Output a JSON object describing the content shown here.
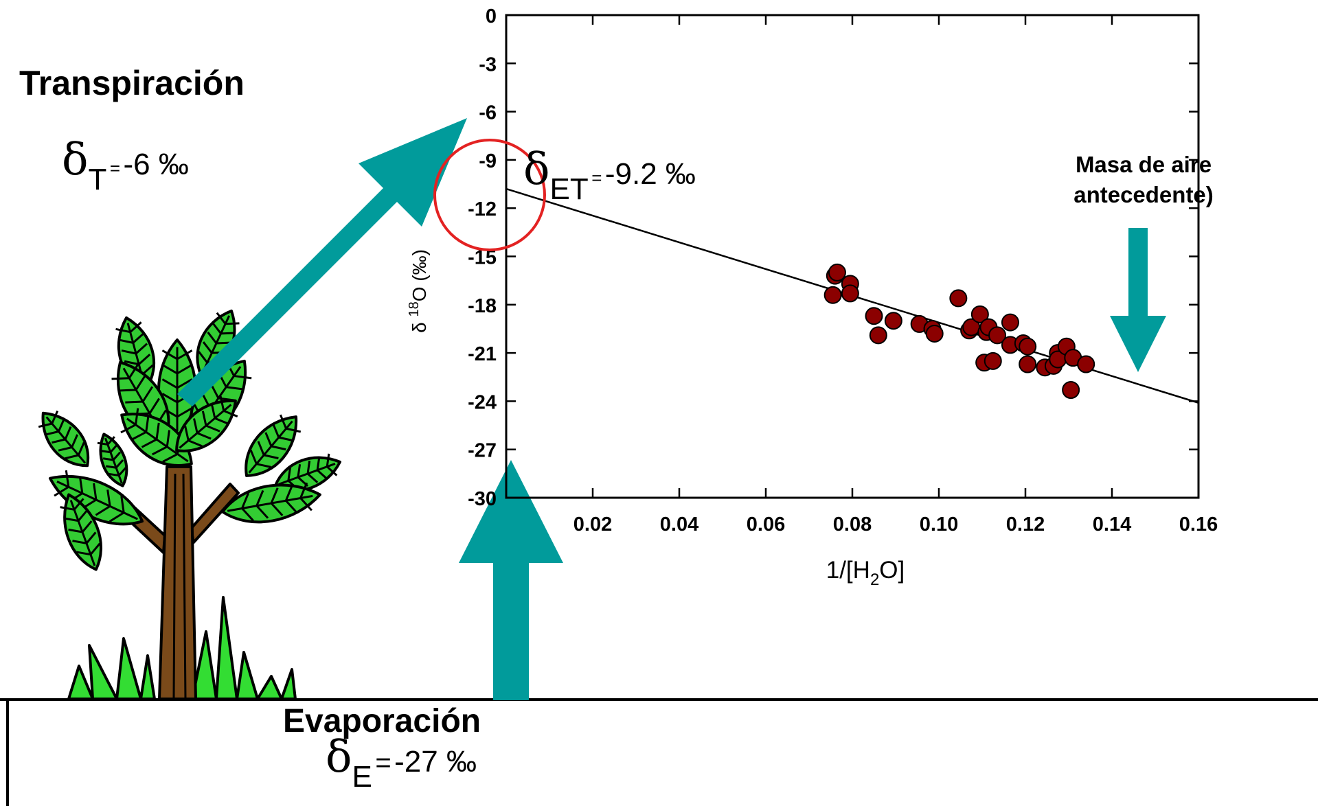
{
  "transpiration": {
    "title": "Transpiración",
    "delta_symbol": "δ",
    "subscript": "T",
    "equals": "=",
    "value": "-6 ‰"
  },
  "evaporation": {
    "title": "Evaporación",
    "delta_symbol": "δ",
    "subscript": "E",
    "equals": "=",
    "value": "-27 ‰"
  },
  "evapotranspiration": {
    "delta_symbol": "δ",
    "subscript": "ET",
    "equals": "=",
    "value": "-9.2 ‰"
  },
  "air_mass": {
    "line1": "Masa de aire",
    "line2": "antecedente)"
  },
  "colors": {
    "arrow": "#019b9b",
    "points": "#8b0000",
    "circle": "#e32222",
    "leaf": "#33cc33",
    "trunk": "#7a4a1a"
  },
  "chart_data": {
    "type": "scatter",
    "xlabel_parts": [
      "1/[H",
      "2",
      "O]"
    ],
    "ylabel_parts": [
      "δ ",
      "18",
      "O (‰)"
    ],
    "xlim": [
      0,
      0.16
    ],
    "ylim": [
      -30,
      0
    ],
    "x_ticks": [
      0.02,
      0.04,
      0.06,
      0.08,
      0.1,
      0.12,
      0.14,
      0.16
    ],
    "x_tick_labels": [
      "0.02",
      "0.04",
      "0.06",
      "0.08",
      "0.10",
      "0.12",
      "0.14",
      "0.16"
    ],
    "y_ticks": [
      0,
      -3,
      -6,
      -9,
      -12,
      -15,
      -18,
      -21,
      -24,
      -27,
      -30
    ],
    "y_tick_labels": [
      "0",
      "-3",
      "-6",
      "-9",
      "-12",
      "-15",
      "-18",
      "-21",
      "-24",
      "-27",
      "-30"
    ],
    "points": [
      [
        0.076,
        -16.2
      ],
      [
        0.0765,
        -16.0
      ],
      [
        0.0795,
        -16.7
      ],
      [
        0.0755,
        -17.4
      ],
      [
        0.0795,
        -17.3
      ],
      [
        0.085,
        -18.7
      ],
      [
        0.0895,
        -19.0
      ],
      [
        0.086,
        -19.9
      ],
      [
        0.0955,
        -19.2
      ],
      [
        0.0985,
        -19.5
      ],
      [
        0.099,
        -19.8
      ],
      [
        0.1045,
        -17.6
      ],
      [
        0.107,
        -19.6
      ],
      [
        0.1075,
        -19.4
      ],
      [
        0.1095,
        -18.6
      ],
      [
        0.111,
        -19.7
      ],
      [
        0.1115,
        -19.4
      ],
      [
        0.1135,
        -19.9
      ],
      [
        0.1165,
        -19.1
      ],
      [
        0.1165,
        -20.5
      ],
      [
        0.1195,
        -20.4
      ],
      [
        0.1205,
        -20.6
      ],
      [
        0.1105,
        -21.6
      ],
      [
        0.1125,
        -21.5
      ],
      [
        0.1205,
        -21.7
      ],
      [
        0.1245,
        -21.9
      ],
      [
        0.1265,
        -21.8
      ],
      [
        0.1275,
        -21.0
      ],
      [
        0.1275,
        -21.4
      ],
      [
        0.1295,
        -20.6
      ],
      [
        0.131,
        -21.3
      ],
      [
        0.134,
        -21.7
      ],
      [
        0.1305,
        -23.3
      ]
    ],
    "fit_line": {
      "x": [
        0,
        0.16
      ],
      "y": [
        -10.8,
        -24.1
      ]
    }
  }
}
